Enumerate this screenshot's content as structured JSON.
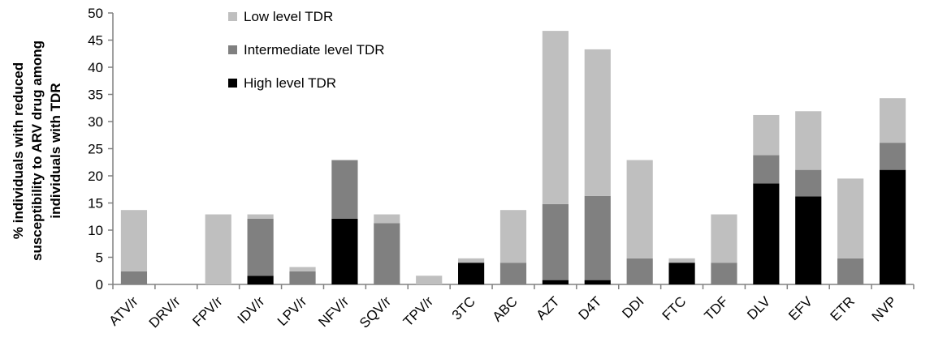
{
  "chart_data": {
    "type": "bar",
    "stacked": true,
    "title": "",
    "xlabel": "",
    "ylabel_lines": [
      "% individuals with reduced",
      "susceptibility to ARV drug among",
      "individuals with TDR"
    ],
    "ylim": [
      0,
      50
    ],
    "yticks": [
      0,
      5,
      10,
      15,
      20,
      25,
      30,
      35,
      40,
      45,
      50
    ],
    "grid": false,
    "legend_position": "top-center",
    "categories": [
      "ATV/r",
      "DRV/r",
      "FPV/r",
      "IDV/r",
      "LPV/r",
      "NFV/r",
      "SQV/r",
      "TPV/r",
      "3TC",
      "ABC",
      "AZT",
      "D4T",
      "DDI",
      "FTC",
      "TDF",
      "DLV",
      "EFV",
      "ETR",
      "NVP"
    ],
    "series": [
      {
        "name": "High level TDR",
        "color": "#000000",
        "values": [
          0,
          0,
          0,
          1.6,
          0,
          12.1,
          0,
          0,
          4.0,
          0,
          0.8,
          0.8,
          0,
          4.0,
          0,
          18.6,
          16.2,
          0,
          21.1
        ]
      },
      {
        "name": "Intermediate level TDR",
        "color": "#808080",
        "values": [
          2.4,
          0,
          0,
          10.5,
          2.4,
          10.8,
          11.3,
          0,
          0,
          4.0,
          14.0,
          15.5,
          4.8,
          0,
          4.0,
          5.2,
          4.9,
          4.8,
          5.0
        ]
      },
      {
        "name": "Low level TDR",
        "color": "#bfbfbf",
        "values": [
          11.3,
          0,
          12.9,
          0.8,
          0.8,
          0,
          1.6,
          1.6,
          0.8,
          9.7,
          31.9,
          27.0,
          18.1,
          0.8,
          8.9,
          7.4,
          10.8,
          14.7,
          8.2
        ]
      }
    ]
  },
  "legend": {
    "items": [
      {
        "label": "Low level TDR",
        "color": "#bfbfbf"
      },
      {
        "label": "Intermediate level TDR",
        "color": "#808080"
      },
      {
        "label": "High level TDR",
        "color": "#000000"
      }
    ]
  }
}
